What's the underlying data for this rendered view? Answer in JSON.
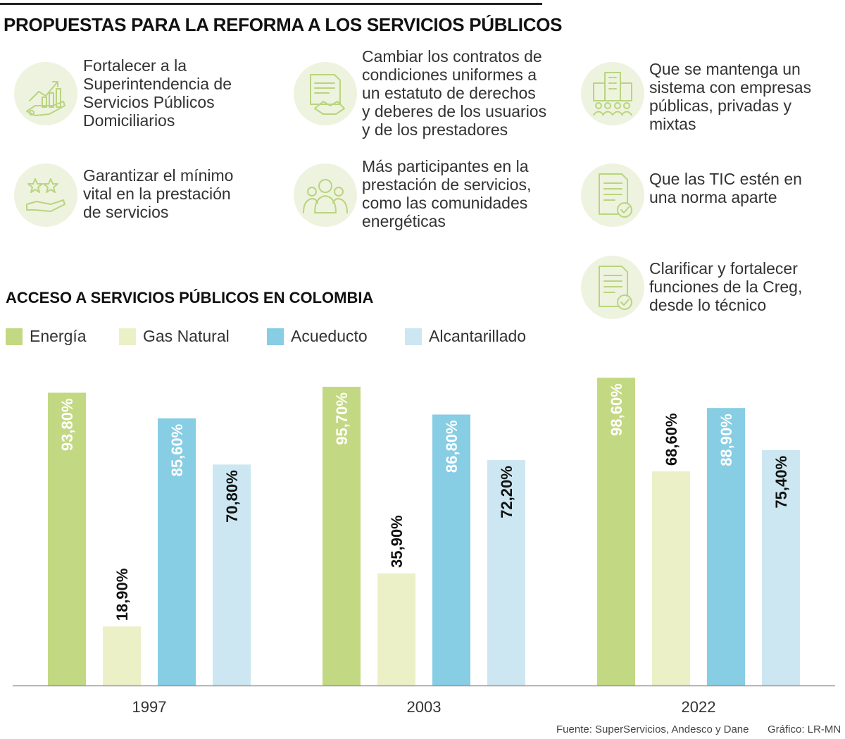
{
  "header": {
    "title": "PROPUESTAS PARA LA REFORMA A LOS SERVICIOS PÚBLICOS"
  },
  "proposals": [
    {
      "icon": "growth-chart-hand-icon",
      "text": "Fortalecer a la\nSuperintendencia de\nServicios Públicos\nDomiciliarios"
    },
    {
      "icon": "contract-handshake-icon",
      "text": "Cambiar los contratos de\ncondiciones uniformes a\nun estatuto de derechos\ny deberes de los usuarios\ny de los prestadores"
    },
    {
      "icon": "building-people-icon",
      "text": "Que se mantenga un\nsistema con empresas\npúblicas, privadas y\nmixtas"
    },
    {
      "icon": "stars-hand-icon",
      "text": "Garantizar el mínimo\nvital en la prestación\nde servicios"
    },
    {
      "icon": "community-people-icon",
      "text": "Más participantes en la\nprestación de servicios,\ncomo las comunidades\nenergéticas"
    },
    {
      "icon": "document-check-icon",
      "text": "Que las TIC estén en\nuna norma aparte"
    },
    {
      "icon": "document-check-icon",
      "text": "Clarificar y fortalecer\nfunciones de la Creg,\ndesde lo técnico"
    }
  ],
  "chart_data": {
    "type": "bar",
    "title": "ACCESO A SERVICIOS PÚBLICOS EN COLOMBIA",
    "categories": [
      "1997",
      "2003",
      "2022"
    ],
    "series": [
      {
        "name": "Energía",
        "color": "#c3d882",
        "values": [
          93.8,
          95.7,
          98.6
        ],
        "labels": [
          "93,80%",
          "95,70%",
          "98,60%"
        ]
      },
      {
        "name": "Gas Natural",
        "color": "#ecf0c7",
        "values": [
          18.9,
          35.9,
          68.6
        ],
        "labels": [
          "18,90%",
          "35,90%",
          "68,60%"
        ]
      },
      {
        "name": "Acueducto",
        "color": "#87cde4",
        "values": [
          85.6,
          86.8,
          88.9
        ],
        "labels": [
          "85,60%",
          "86,80%",
          "88,90%"
        ]
      },
      {
        "name": "Alcantarillado",
        "color": "#cce7f2",
        "values": [
          70.8,
          72.2,
          75.4
        ],
        "labels": [
          "70,80%",
          "72,20%",
          "75,40%"
        ]
      }
    ],
    "ylim": [
      0,
      100
    ],
    "grid": false,
    "legend": "top-left"
  },
  "footer": {
    "source": "Fuente: SuperServicios, Andesco y Dane",
    "credit": "Gráfico: LR-MN"
  }
}
